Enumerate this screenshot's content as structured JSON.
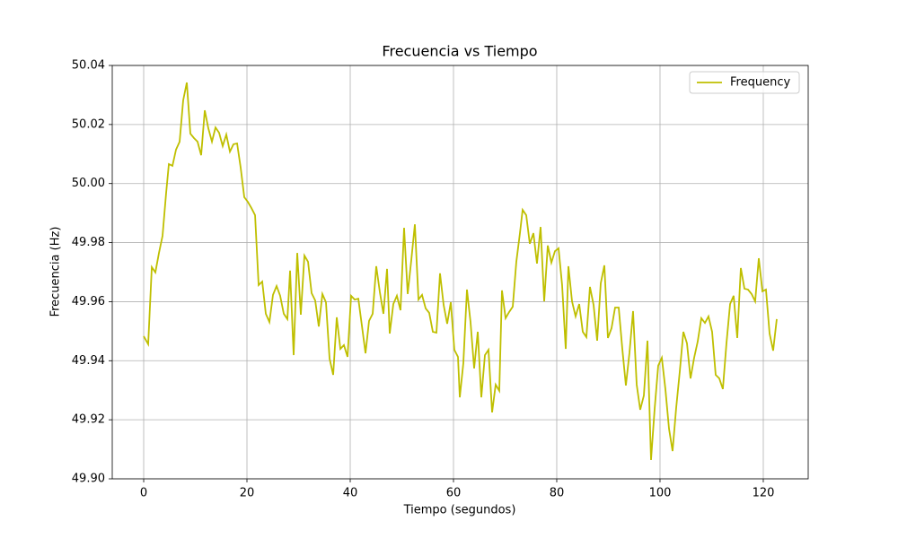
{
  "chart_data": {
    "type": "line",
    "title": "Frecuencia vs Tiempo",
    "x_label": "Tiempo (segundos)",
    "y_label": "Frecuencia (Hz)",
    "x": [
      0,
      0.87,
      1.57,
      2.26,
      2.96,
      3.65,
      4.35,
      4.87,
      5.57,
      6.26,
      6.96,
      7.65,
      8.35,
      9.04,
      9.74,
      10.43,
      11.13,
      11.83,
      12.52,
      13.22,
      13.91,
      14.61,
      15.3,
      16,
      16.7,
      17.39,
      18.09,
      18.78,
      19.48,
      20.17,
      20.87,
      21.57,
      22.26,
      22.96,
      23.65,
      24.35,
      25.04,
      25.74,
      26.43,
      27.13,
      27.83,
      28.35,
      29.04,
      29.74,
      30.43,
      31.13,
      31.83,
      32.52,
      33.22,
      33.91,
      34.61,
      35.3,
      36,
      36.7,
      37.39,
      38.09,
      38.78,
      39.48,
      40.17,
      40.87,
      41.57,
      42.26,
      42.96,
      43.65,
      44.35,
      45.04,
      45.74,
      46.43,
      47.13,
      47.65,
      48.35,
      49.04,
      49.74,
      50.43,
      51.13,
      51.83,
      52.52,
      53.22,
      53.91,
      54.61,
      55.3,
      56,
      56.7,
      57.39,
      58.09,
      58.78,
      59.48,
      60.17,
      60.87,
      61.22,
      61.91,
      62.61,
      63.3,
      64,
      64.7,
      65.39,
      66.09,
      66.78,
      67.48,
      68.17,
      68.87,
      69.39,
      70.09,
      70.78,
      71.48,
      72.17,
      72.87,
      73.39,
      74.09,
      74.78,
      75.48,
      76.17,
      76.87,
      77.57,
      78.26,
      78.96,
      79.65,
      80.35,
      81.04,
      81.74,
      82.26,
      82.96,
      83.65,
      84.35,
      85.04,
      85.74,
      86.43,
      87.13,
      87.83,
      88.52,
      89.22,
      89.91,
      90.61,
      91.3,
      92,
      92.7,
      93.39,
      94.09,
      94.78,
      95.48,
      96.17,
      96.87,
      97.57,
      98.26,
      98.96,
      99.65,
      100.35,
      101.04,
      101.74,
      102.43,
      103.13,
      103.83,
      104.52,
      105.22,
      105.91,
      106.61,
      107.3,
      108,
      108.7,
      109.39,
      110.09,
      110.78,
      111.48,
      112.17,
      112.87,
      113.57,
      114.26,
      114.96,
      115.65,
      116.35,
      117.04,
      117.74,
      118.43,
      119.13,
      119.83,
      120.52,
      121.22,
      121.91,
      122.61
    ],
    "series": [
      {
        "name": "Frequency",
        "color": "#bfbf00",
        "values": [
          49.9483,
          49.9456,
          49.9717,
          49.9699,
          49.9765,
          49.9823,
          49.9969,
          50.0066,
          50.006,
          50.0115,
          50.0142,
          50.0282,
          50.0342,
          50.0169,
          50.0154,
          50.0142,
          50.0096,
          50.0248,
          50.0187,
          50.0142,
          50.019,
          50.0172,
          50.0127,
          50.0166,
          50.0108,
          50.0133,
          50.0136,
          50.0054,
          49.9954,
          49.9938,
          49.9917,
          49.9893,
          49.9656,
          49.9668,
          49.9559,
          49.9531,
          49.9623,
          49.9653,
          49.962,
          49.9559,
          49.9541,
          49.9705,
          49.9419,
          49.9765,
          49.9556,
          49.9756,
          49.9735,
          49.9629,
          49.9604,
          49.9516,
          49.9626,
          49.9598,
          49.9407,
          49.9352,
          49.9547,
          49.944,
          49.9453,
          49.9413,
          49.962,
          49.9607,
          49.961,
          49.9519,
          49.9425,
          49.9535,
          49.9559,
          49.972,
          49.9632,
          49.9559,
          49.9711,
          49.9492,
          49.9592,
          49.962,
          49.9571,
          49.985,
          49.9626,
          49.9741,
          49.9862,
          49.9607,
          49.9623,
          49.9577,
          49.9562,
          49.9498,
          49.9495,
          49.9696,
          49.9589,
          49.9525,
          49.9598,
          49.9437,
          49.9413,
          49.9276,
          49.9392,
          49.9641,
          49.9531,
          49.9374,
          49.9498,
          49.9276,
          49.9419,
          49.9437,
          49.9225,
          49.9319,
          49.9298,
          49.9638,
          49.9544,
          49.9565,
          49.9583,
          49.9735,
          49.9832,
          49.9911,
          49.9893,
          49.9796,
          49.9832,
          49.9729,
          49.9853,
          49.9601,
          49.979,
          49.9732,
          49.9771,
          49.9781,
          49.9656,
          49.944,
          49.972,
          49.9601,
          49.955,
          49.9592,
          49.9498,
          49.948,
          49.965,
          49.9589,
          49.9468,
          49.9662,
          49.9723,
          49.9477,
          49.951,
          49.958,
          49.958,
          49.944,
          49.9316,
          49.9428,
          49.9568,
          49.9319,
          49.9234,
          49.9282,
          49.9468,
          49.9064,
          49.9237,
          49.9383,
          49.941,
          49.9304,
          49.917,
          49.9094,
          49.924,
          49.9364,
          49.9498,
          49.9459,
          49.934,
          49.941,
          49.9465,
          49.9544,
          49.9528,
          49.955,
          49.9498,
          49.9352,
          49.934,
          49.9304,
          49.9459,
          49.9592,
          49.962,
          49.9477,
          49.9714,
          49.9644,
          49.9641,
          49.9626,
          49.9601,
          49.9747,
          49.9635,
          49.9641,
          49.9492,
          49.9434,
          49.9541
        ]
      }
    ],
    "xlim": [
      -6.09,
      128.7
    ],
    "xticks": [
      0,
      20,
      40,
      60,
      80,
      100,
      120
    ],
    "ylim": [
      49.9,
      50.04
    ],
    "yticks": [
      {
        "value": 49.9,
        "label": "49.90"
      },
      49.92,
      49.94,
      49.96,
      49.98,
      {
        "value": 50,
        "label": "50.00"
      },
      50.02,
      50.04
    ],
    "grid": true,
    "legend": "upper right"
  }
}
